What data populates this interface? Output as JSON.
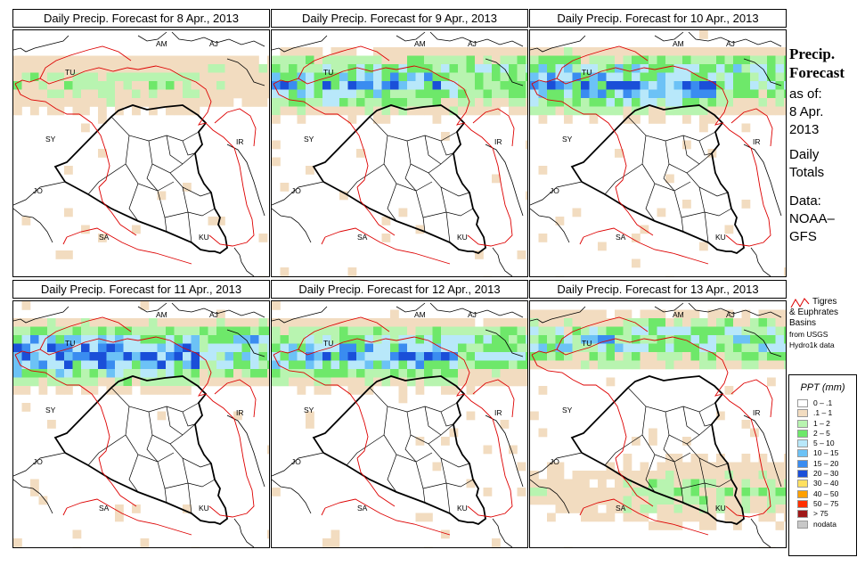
{
  "panels": [
    {
      "title": "Daily Precip. Forecast for  8 Apr., 2013",
      "intensity": 0.35,
      "seed": 3,
      "focus": "north"
    },
    {
      "title": "Daily Precip. Forecast for  9 Apr., 2013",
      "intensity": 0.75,
      "seed": 11,
      "focus": "north"
    },
    {
      "title": "Daily Precip. Forecast for  10 Apr., 2013",
      "intensity": 0.9,
      "seed": 23,
      "focus": "north"
    },
    {
      "title": "Daily Precip. Forecast for  11 Apr., 2013",
      "intensity": 1.0,
      "seed": 37,
      "focus": "north"
    },
    {
      "title": "Daily Precip. Forecast for  12 Apr., 2013",
      "intensity": 0.8,
      "seed": 41,
      "focus": "north"
    },
    {
      "title": "Daily Precip. Forecast for  13 Apr., 2013",
      "intensity": 0.7,
      "seed": 59,
      "focus": "south"
    }
  ],
  "country_labels": {
    "am": "AM",
    "aj": "AJ",
    "tu": "TU",
    "sy": "SY",
    "ir": "IR",
    "jo": "JO",
    "sa": "SA",
    "ku": "KU"
  },
  "sidebar": {
    "title_line1": "Precip.",
    "title_line2": "Forecast",
    "asof_line1": "as of:",
    "asof_line2": "8 Apr.",
    "asof_line3": "2013",
    "daily_line1": "Daily",
    "daily_line2": "Totals",
    "data_line1": "Data:",
    "data_line2": "NOAA–",
    "data_line3": "GFS"
  },
  "basin_note": {
    "line1": "Tigres",
    "line2": "& Euphrates",
    "line3": "Basins",
    "line4": "from USGS",
    "line5": "Hydro1k data",
    "line_color": "#dd0000"
  },
  "legend": {
    "title": "PPT (mm)",
    "items": [
      {
        "label": "0 – .1",
        "color": "#ffffff"
      },
      {
        "label": ".1 – 1",
        "color": "#f2dcc0"
      },
      {
        "label": "1 – 2",
        "color": "#b8f4b0"
      },
      {
        "label": "2 – 5",
        "color": "#6ee86a"
      },
      {
        "label": "5 – 10",
        "color": "#b8e8fa"
      },
      {
        "label": "10 – 15",
        "color": "#6cc2f6"
      },
      {
        "label": "15 – 20",
        "color": "#3a8cf0"
      },
      {
        "label": "20 – 30",
        "color": "#1a4fd8"
      },
      {
        "label": "30 – 40",
        "color": "#ffe060"
      },
      {
        "label": "40 – 50",
        "color": "#ffa000"
      },
      {
        "label": "50 – 75",
        "color": "#ff3000"
      },
      {
        "label": "> 75",
        "color": "#a01818"
      },
      {
        "label": "nodata",
        "color": "#c8c8c8"
      }
    ]
  }
}
